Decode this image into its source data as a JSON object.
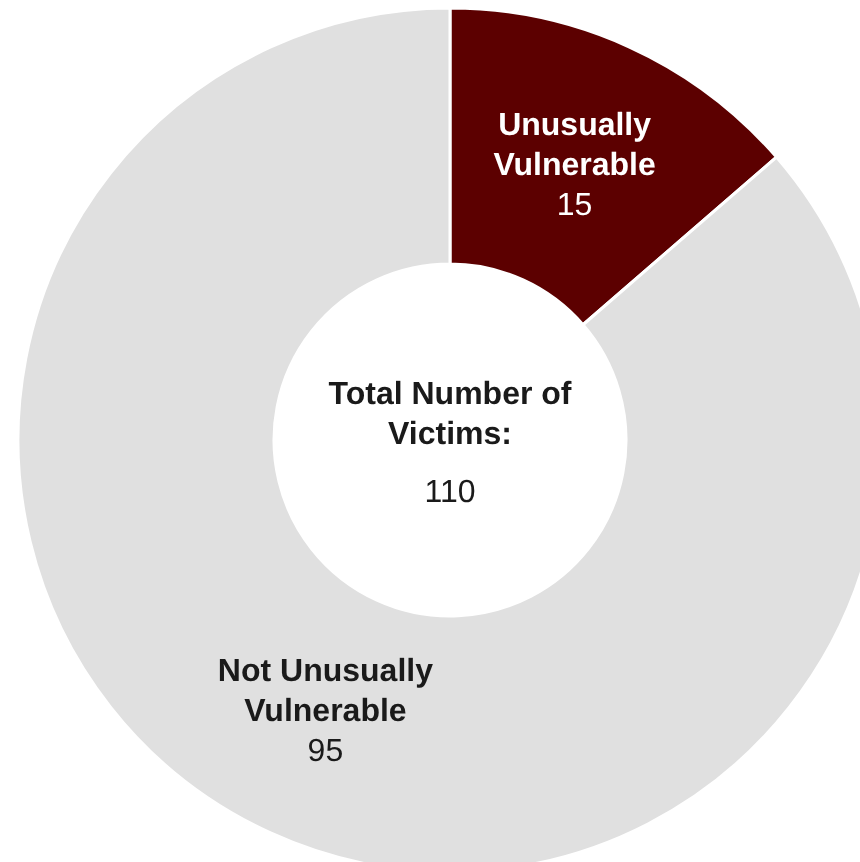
{
  "chart_data": {
    "type": "donut",
    "title": "Total Number of Victims:",
    "annotations": [
      "110"
    ],
    "categories": [
      "Unusually Vulnerable",
      "Not Unusually Vulnerable"
    ],
    "values": [
      15,
      95
    ],
    "colors": [
      "#5c0000",
      "#e0e0e0"
    ],
    "data_labels": true
  }
}
